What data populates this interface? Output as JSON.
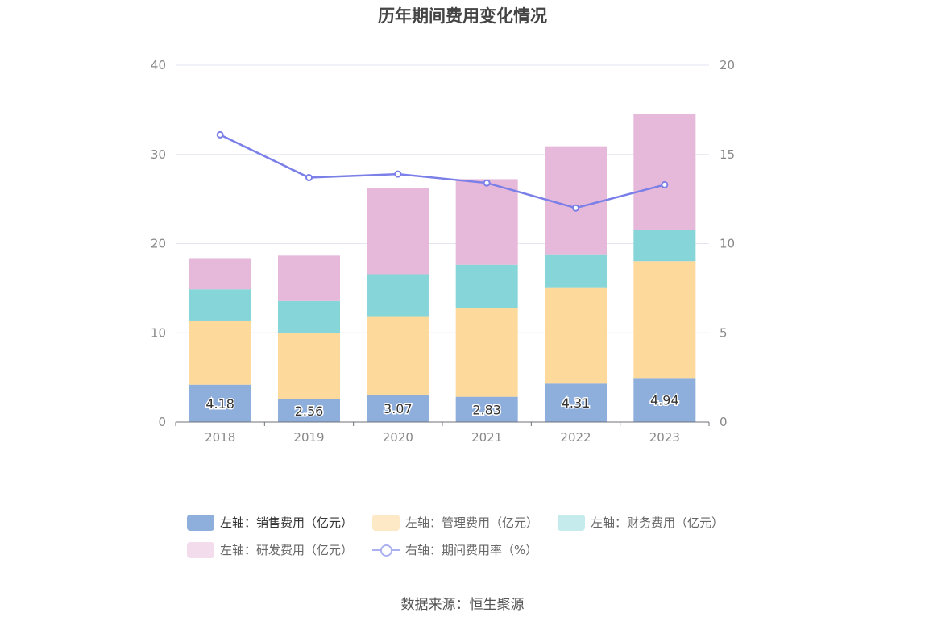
{
  "chart_data": {
    "type": "bar",
    "title": "历年期间费用变化情况",
    "categories": [
      "2018",
      "2019",
      "2020",
      "2021",
      "2022",
      "2023"
    ],
    "series": [
      {
        "name": "左轴：销售费用（亿元）",
        "axis": "left",
        "kind": "bar",
        "color": "#8eaedc",
        "values": [
          4.18,
          2.56,
          3.07,
          2.83,
          4.31,
          4.94
        ],
        "show_labels": true
      },
      {
        "name": "左轴：管理费用（亿元）",
        "axis": "left",
        "kind": "bar",
        "color": "#fdd99b",
        "values": [
          7.2,
          7.4,
          8.8,
          9.9,
          10.8,
          13.1
        ]
      },
      {
        "name": "左轴：财务费用（亿元）",
        "axis": "left",
        "kind": "bar",
        "color": "#86d5d8",
        "values": [
          3.5,
          3.6,
          4.7,
          4.9,
          3.7,
          3.5
        ]
      },
      {
        "name": "左轴：研发费用（亿元）",
        "axis": "left",
        "kind": "bar",
        "color": "#e6b8d9",
        "values": [
          3.5,
          5.1,
          9.7,
          9.6,
          12.1,
          13.0
        ]
      },
      {
        "name": "右轴：期间费用率（%）",
        "axis": "right",
        "kind": "line",
        "color": "#7b7fe8",
        "values": [
          16.1,
          13.7,
          13.9,
          13.4,
          12.0,
          13.3
        ]
      }
    ],
    "y_left": {
      "min": 0,
      "max": 40,
      "ticks": [
        0,
        10,
        20,
        30,
        40
      ]
    },
    "y_right": {
      "min": 0,
      "max": 20,
      "ticks": [
        0,
        5,
        10,
        15,
        20
      ]
    },
    "grid": true,
    "legend_position": "bottom"
  },
  "source_text": "数据来源：恒生聚源"
}
